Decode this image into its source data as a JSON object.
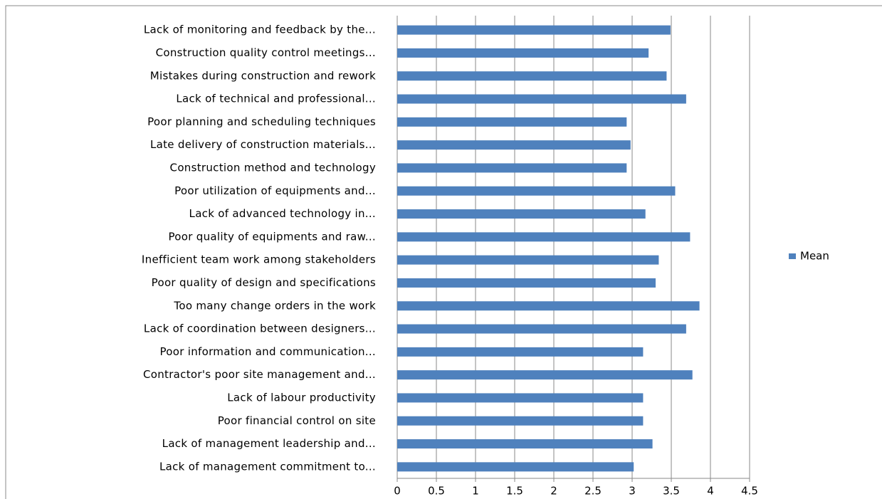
{
  "chart_data": {
    "type": "bar",
    "orientation": "horizontal",
    "categories": [
      "Lack of monitoring and feedback by the...",
      "Construction quality control meetings...",
      "Mistakes during construction and rework",
      "Lack of technical and professional...",
      "Poor planning and scheduling techniques",
      "Late delivery of construction materials...",
      "Construction method and technology",
      "Poor utilization of equipments and...",
      "Lack of advanced technology in...",
      "Poor quality of equipments and raw...",
      "Inefficient team work among stakeholders",
      "Poor quality of design and specifications",
      "Too many change orders in the work",
      "Lack of coordination between designers...",
      "Poor information and communication...",
      "Contractor's poor site management and...",
      "Lack of labour productivity",
      "Poor financial control on site",
      "Lack of management leadership and...",
      "Lack of management commitment to..."
    ],
    "series": [
      {
        "name": "Mean",
        "color": "#4f81bd",
        "values": [
          3.49,
          3.21,
          3.44,
          3.69,
          2.93,
          2.98,
          2.93,
          3.55,
          3.17,
          3.74,
          3.34,
          3.3,
          3.86,
          3.69,
          3.14,
          3.77,
          3.14,
          3.14,
          3.26,
          3.02
        ]
      }
    ],
    "xlim": [
      0,
      4.5
    ],
    "xticks": [
      0,
      0.5,
      1,
      1.5,
      2,
      2.5,
      3,
      3.5,
      4,
      4.5
    ],
    "grid": true,
    "legend": "right"
  }
}
